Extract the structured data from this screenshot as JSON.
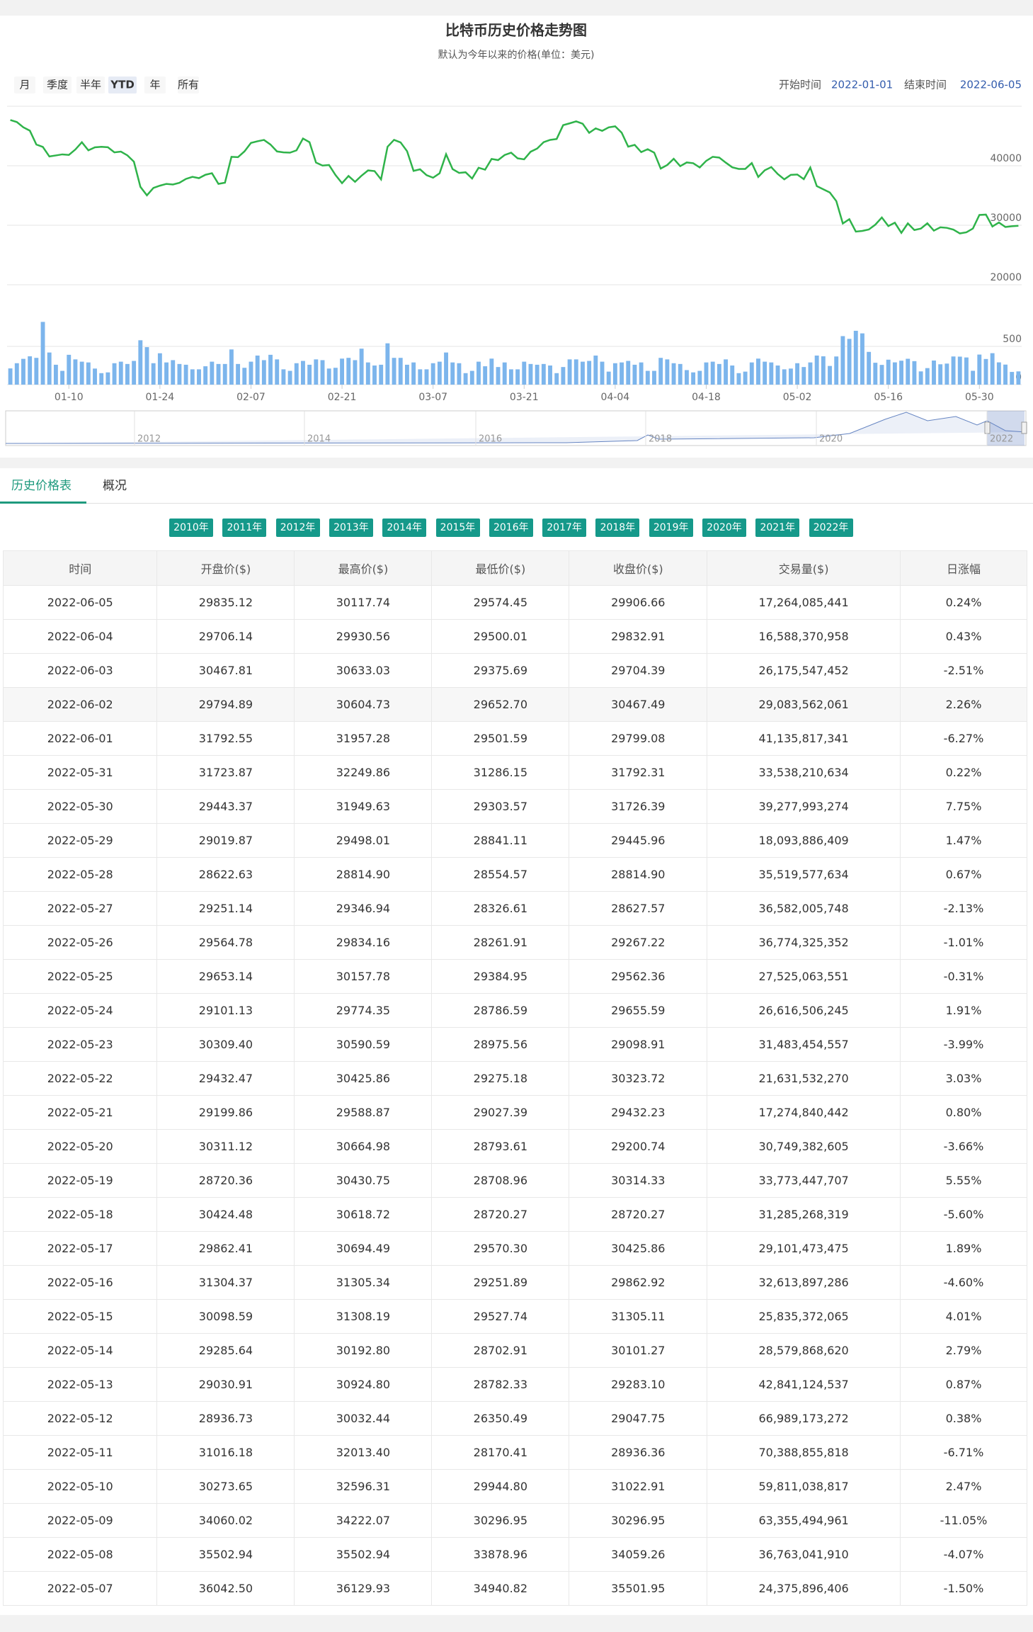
{
  "chart_data": [
    {
      "type": "line",
      "title": "比特币历史价格走势图",
      "subtitle": "默认为今年以来的价格(单位：美元)",
      "color": "#2fb34a",
      "ylim": [
        20000,
        50000
      ],
      "yticks": [
        20000,
        30000,
        40000
      ],
      "grid": true,
      "x": [
        "01-01",
        "01-02",
        "01-03",
        "01-04",
        "01-05",
        "01-06",
        "01-07",
        "01-08",
        "01-09",
        "01-10",
        "01-11",
        "01-12",
        "01-13",
        "01-14",
        "01-15",
        "01-16",
        "01-17",
        "01-18",
        "01-19",
        "01-20",
        "01-21",
        "01-22",
        "01-23",
        "01-24",
        "01-25",
        "01-26",
        "01-27",
        "01-28",
        "01-29",
        "01-30",
        "01-31",
        "02-01",
        "02-02",
        "02-03",
        "02-04",
        "02-05",
        "02-06",
        "02-07",
        "02-08",
        "02-09",
        "02-10",
        "02-11",
        "02-12",
        "02-13",
        "02-14",
        "02-15",
        "02-16",
        "02-17",
        "02-18",
        "02-19",
        "02-20",
        "02-21",
        "02-22",
        "02-23",
        "02-24",
        "02-25",
        "02-26",
        "02-27",
        "02-28",
        "03-01",
        "03-02",
        "03-03",
        "03-04",
        "03-05",
        "03-06",
        "03-07",
        "03-08",
        "03-09",
        "03-10",
        "03-11",
        "03-12",
        "03-13",
        "03-14",
        "03-15",
        "03-16",
        "03-17",
        "03-18",
        "03-19",
        "03-20",
        "03-21",
        "03-22",
        "03-23",
        "03-24",
        "03-25",
        "03-26",
        "03-27",
        "03-28",
        "03-29",
        "03-30",
        "03-31",
        "04-01",
        "04-02",
        "04-03",
        "04-04",
        "04-05",
        "04-06",
        "04-07",
        "04-08",
        "04-09",
        "04-10",
        "04-11",
        "04-12",
        "04-13",
        "04-14",
        "04-15",
        "04-16",
        "04-17",
        "04-18",
        "04-19",
        "04-20",
        "04-21",
        "04-22",
        "04-23",
        "04-24",
        "04-25",
        "04-26",
        "04-27",
        "04-28",
        "04-29",
        "04-30",
        "05-01",
        "05-02",
        "05-03",
        "05-04",
        "05-05",
        "05-06",
        "05-07",
        "05-08",
        "05-09",
        "05-10",
        "05-11",
        "05-12",
        "05-13",
        "05-14",
        "05-15",
        "05-16",
        "05-17",
        "05-18",
        "05-19",
        "05-20",
        "05-21",
        "05-22",
        "05-23",
        "05-24",
        "05-25",
        "05-26",
        "05-27",
        "05-28",
        "05-29",
        "05-30",
        "05-31",
        "06-01",
        "06-02",
        "06-03",
        "06-04",
        "06-05"
      ],
      "values": [
        47686,
        47345,
        46458,
        45897,
        43569,
        43160,
        41557,
        41733,
        41911,
        41821,
        42735,
        43949,
        42591,
        43099,
        43177,
        43113,
        42250,
        42375,
        41744,
        40680,
        36457,
        35030,
        36276,
        36654,
        36954,
        36852,
        37138,
        37784,
        38138,
        37917,
        38483,
        38743,
        36952,
        37154,
        41500,
        41441,
        42412,
        43840,
        44118,
        44338,
        43565,
        42407,
        42244,
        42197,
        42586,
        44575,
        43961,
        40538,
        40030,
        40122,
        38431,
        37075,
        38286,
        37296,
        38332,
        39214,
        39105,
        37709,
        43193,
        44354,
        43924,
        42451,
        39137,
        39400,
        38420,
        37988,
        38730,
        41941,
        39439,
        38794,
        38904,
        37849,
        39666,
        39338,
        41143,
        40951,
        41801,
        42190,
        41247,
        41077,
        42358,
        42892,
        43960,
        44348,
        44500,
        46820,
        47128,
        47465,
        47062,
        45538,
        46281,
        45868,
        46453,
        46622,
        45555,
        43206,
        43503,
        42287,
        42782,
        42207,
        39521,
        40127,
        41166,
        39935,
        40553,
        40424,
        39716,
        40826,
        41503,
        41374,
        40527,
        39740,
        39470,
        39469,
        40458,
        38117,
        39241,
        39773,
        38609,
        37714,
        38469,
        38529,
        37750,
        39698,
        36575,
        36040,
        35502,
        34059,
        30297,
        31023,
        28936,
        29048,
        29283,
        30101,
        31305,
        29863,
        30426,
        28720,
        30314,
        29201,
        29432,
        30324,
        29099,
        29656,
        29562,
        29267,
        28628,
        28815,
        29446,
        31726,
        31792,
        29799,
        30467,
        29704,
        29833,
        29907
      ]
    },
    {
      "type": "bar",
      "color": "#7cb5ec",
      "ylim": [
        0,
        1000
      ],
      "yticks": [
        0,
        500
      ],
      "x": [
        "01-01",
        "01-02",
        "01-03",
        "01-04",
        "01-05",
        "01-06",
        "01-07",
        "01-08",
        "01-09",
        "01-10",
        "01-11",
        "01-12",
        "01-13",
        "01-14",
        "01-15",
        "01-16",
        "01-17",
        "01-18",
        "01-19",
        "01-20",
        "01-21",
        "01-22",
        "01-23",
        "01-24",
        "01-25",
        "01-26",
        "01-27",
        "01-28",
        "01-29",
        "01-30",
        "01-31",
        "02-01",
        "02-02",
        "02-03",
        "02-04",
        "02-05",
        "02-06",
        "02-07",
        "02-08",
        "02-09",
        "02-10",
        "02-11",
        "02-12",
        "02-13",
        "02-14",
        "02-15",
        "02-16",
        "02-17",
        "02-18",
        "02-19",
        "02-20",
        "02-21",
        "02-22",
        "02-23",
        "02-24",
        "02-25",
        "02-26",
        "02-27",
        "02-28",
        "03-01",
        "03-02",
        "03-03",
        "03-04",
        "03-05",
        "03-06",
        "03-07",
        "03-08",
        "03-09",
        "03-10",
        "03-11",
        "03-12",
        "03-13",
        "03-14",
        "03-15",
        "03-16",
        "03-17",
        "03-18",
        "03-19",
        "03-20",
        "03-21",
        "03-22",
        "03-23",
        "03-24",
        "03-25",
        "03-26",
        "03-27",
        "03-28",
        "03-29",
        "03-30",
        "03-31",
        "04-01",
        "04-02",
        "04-03",
        "04-04",
        "04-05",
        "04-06",
        "04-07",
        "04-08",
        "04-09",
        "04-10",
        "04-11",
        "04-12",
        "04-13",
        "04-14",
        "04-15",
        "04-16",
        "04-17",
        "04-18",
        "04-19",
        "04-20",
        "04-21",
        "04-22",
        "04-23",
        "04-24",
        "04-25",
        "04-26",
        "04-27",
        "04-28",
        "04-29",
        "04-30",
        "05-01",
        "05-02",
        "05-03",
        "05-04",
        "05-05",
        "05-06",
        "05-07",
        "05-08",
        "05-09",
        "05-10",
        "05-11",
        "05-12",
        "05-13",
        "05-14",
        "05-15",
        "05-16",
        "05-17",
        "05-18",
        "05-19",
        "05-20",
        "05-21",
        "05-22",
        "05-23",
        "05-24",
        "05-25",
        "05-26",
        "05-27",
        "05-28",
        "05-29",
        "05-30",
        "05-31",
        "06-01",
        "06-02",
        "06-03",
        "06-04",
        "06-05"
      ],
      "xticks": [
        "01-10",
        "01-24",
        "02-07",
        "02-21",
        "03-07",
        "03-21",
        "04-04",
        "04-18",
        "05-02",
        "05-16",
        "05-30"
      ],
      "values": [
        212,
        280,
        337,
        370,
        350,
        820,
        420,
        260,
        180,
        390,
        330,
        300,
        290,
        210,
        150,
        160,
        280,
        300,
        270,
        310,
        580,
        490,
        280,
        410,
        290,
        320,
        270,
        260,
        200,
        200,
        240,
        300,
        270,
        270,
        460,
        270,
        220,
        300,
        380,
        320,
        390,
        330,
        200,
        180,
        280,
        310,
        260,
        330,
        320,
        210,
        220,
        340,
        350,
        320,
        470,
        290,
        250,
        260,
        540,
        350,
        350,
        260,
        290,
        200,
        200,
        280,
        300,
        420,
        290,
        280,
        150,
        180,
        300,
        240,
        340,
        230,
        290,
        200,
        200,
        300,
        270,
        260,
        270,
        250,
        150,
        230,
        330,
        330,
        300,
        310,
        380,
        300,
        170,
        280,
        290,
        310,
        260,
        290,
        180,
        180,
        350,
        330,
        280,
        270,
        190,
        160,
        180,
        290,
        300,
        270,
        330,
        250,
        150,
        170,
        290,
        340,
        300,
        290,
        250,
        200,
        210,
        280,
        230,
        290,
        380,
        370,
        244,
        368,
        634,
        598,
        704,
        670,
        428,
        286,
        258,
        326,
        291,
        313,
        338,
        307,
        173,
        216,
        315,
        266,
        275,
        368,
        366,
        355,
        181,
        393,
        335,
        411,
        291,
        262,
        166,
        173
      ]
    }
  ],
  "range_buttons": [
    "月",
    "季度",
    "半年",
    "YTD",
    "年",
    "所有"
  ],
  "range_selected": 3,
  "start_label": "开始时间",
  "start_date": "2022-01-01",
  "end_label": "结束时间",
  "end_date": "2022-06-05",
  "navigator": {
    "years": [
      "2012",
      "2014",
      "2016",
      "2018",
      "2020",
      "2022"
    ]
  },
  "tabs": [
    "历史价格表",
    "概况"
  ],
  "year_buttons": [
    "2010年",
    "2011年",
    "2012年",
    "2013年",
    "2014年",
    "2015年",
    "2016年",
    "2017年",
    "2018年",
    "2019年",
    "2020年",
    "2021年",
    "2022年"
  ],
  "table": {
    "columns": [
      "时间",
      "开盘价($)",
      "最高价($)",
      "最低价($)",
      "收盘价($)",
      "交易量($)",
      "日涨幅"
    ],
    "rows": [
      [
        "2022-06-05",
        "29835.12",
        "30117.74",
        "29574.45",
        "29906.66",
        "17,264,085,441",
        "0.24%"
      ],
      [
        "2022-06-04",
        "29706.14",
        "29930.56",
        "29500.01",
        "29832.91",
        "16,588,370,958",
        "0.43%"
      ],
      [
        "2022-06-03",
        "30467.81",
        "30633.03",
        "29375.69",
        "29704.39",
        "26,175,547,452",
        "-2.51%"
      ],
      [
        "2022-06-02",
        "29794.89",
        "30604.73",
        "29652.70",
        "30467.49",
        "29,083,562,061",
        "2.26%"
      ],
      [
        "2022-06-01",
        "31792.55",
        "31957.28",
        "29501.59",
        "29799.08",
        "41,135,817,341",
        "-6.27%"
      ],
      [
        "2022-05-31",
        "31723.87",
        "32249.86",
        "31286.15",
        "31792.31",
        "33,538,210,634",
        "0.22%"
      ],
      [
        "2022-05-30",
        "29443.37",
        "31949.63",
        "29303.57",
        "31726.39",
        "39,277,993,274",
        "7.75%"
      ],
      [
        "2022-05-29",
        "29019.87",
        "29498.01",
        "28841.11",
        "29445.96",
        "18,093,886,409",
        "1.47%"
      ],
      [
        "2022-05-28",
        "28622.63",
        "28814.90",
        "28554.57",
        "28814.90",
        "35,519,577,634",
        "0.67%"
      ],
      [
        "2022-05-27",
        "29251.14",
        "29346.94",
        "28326.61",
        "28627.57",
        "36,582,005,748",
        "-2.13%"
      ],
      [
        "2022-05-26",
        "29564.78",
        "29834.16",
        "28261.91",
        "29267.22",
        "36,774,325,352",
        "-1.01%"
      ],
      [
        "2022-05-25",
        "29653.14",
        "30157.78",
        "29384.95",
        "29562.36",
        "27,525,063,551",
        "-0.31%"
      ],
      [
        "2022-05-24",
        "29101.13",
        "29774.35",
        "28786.59",
        "29655.59",
        "26,616,506,245",
        "1.91%"
      ],
      [
        "2022-05-23",
        "30309.40",
        "30590.59",
        "28975.56",
        "29098.91",
        "31,483,454,557",
        "-3.99%"
      ],
      [
        "2022-05-22",
        "29432.47",
        "30425.86",
        "29275.18",
        "30323.72",
        "21,631,532,270",
        "3.03%"
      ],
      [
        "2022-05-21",
        "29199.86",
        "29588.87",
        "29027.39",
        "29432.23",
        "17,274,840,442",
        "0.80%"
      ],
      [
        "2022-05-20",
        "30311.12",
        "30664.98",
        "28793.61",
        "29200.74",
        "30,749,382,605",
        "-3.66%"
      ],
      [
        "2022-05-19",
        "28720.36",
        "30430.75",
        "28708.96",
        "30314.33",
        "33,773,447,707",
        "5.55%"
      ],
      [
        "2022-05-18",
        "30424.48",
        "30618.72",
        "28720.27",
        "28720.27",
        "31,285,268,319",
        "-5.60%"
      ],
      [
        "2022-05-17",
        "29862.41",
        "30694.49",
        "29570.30",
        "30425.86",
        "29,101,473,475",
        "1.89%"
      ],
      [
        "2022-05-16",
        "31304.37",
        "31305.34",
        "29251.89",
        "29862.92",
        "32,613,897,286",
        "-4.60%"
      ],
      [
        "2022-05-15",
        "30098.59",
        "31308.19",
        "29527.74",
        "31305.11",
        "25,835,372,065",
        "4.01%"
      ],
      [
        "2022-05-14",
        "29285.64",
        "30192.80",
        "28702.91",
        "30101.27",
        "28,579,868,620",
        "2.79%"
      ],
      [
        "2022-05-13",
        "29030.91",
        "30924.80",
        "28782.33",
        "29283.10",
        "42,841,124,537",
        "0.87%"
      ],
      [
        "2022-05-12",
        "28936.73",
        "30032.44",
        "26350.49",
        "29047.75",
        "66,989,173,272",
        "0.38%"
      ],
      [
        "2022-05-11",
        "31016.18",
        "32013.40",
        "28170.41",
        "28936.36",
        "70,388,855,818",
        "-6.71%"
      ],
      [
        "2022-05-10",
        "30273.65",
        "32596.31",
        "29944.80",
        "31022.91",
        "59,811,038,817",
        "2.47%"
      ],
      [
        "2022-05-09",
        "34060.02",
        "34222.07",
        "30296.95",
        "30296.95",
        "63,355,494,961",
        "-11.05%"
      ],
      [
        "2022-05-08",
        "35502.94",
        "35502.94",
        "33878.96",
        "34059.26",
        "36,763,041,910",
        "-4.07%"
      ],
      [
        "2022-05-07",
        "36042.50",
        "36129.93",
        "34940.82",
        "35501.95",
        "24,375,896,406",
        "-1.50%"
      ]
    ]
  }
}
